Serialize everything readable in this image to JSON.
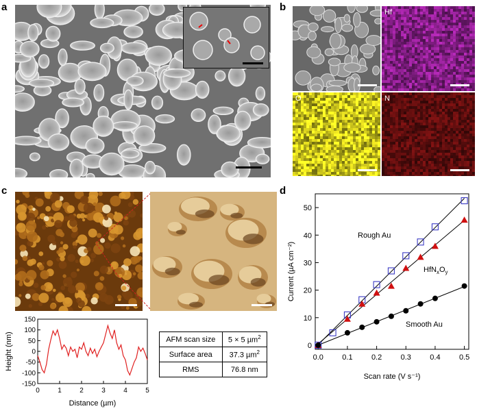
{
  "panels": {
    "a": "a",
    "b": "b",
    "c": "c",
    "d": "d"
  },
  "eds_labels": [
    "Hf",
    "O",
    "N"
  ],
  "colors": {
    "hf_map": "#8a1f8c",
    "o_map": "#c9c21c",
    "n_map": "#5a0d0d",
    "afm": "#a8641a",
    "profile_line": "#e02020",
    "rough_marker": "#3b3bc4",
    "hfnxoy_marker": "#d01010"
  },
  "afm_table": {
    "rows": [
      {
        "label": "AFM scan size",
        "value": "5 × 5 µm",
        "sup": "2"
      },
      {
        "label": "Surface area",
        "value": "37.3 µm",
        "sup": "2"
      },
      {
        "label": "RMS",
        "value": "76.8 nm",
        "sup": ""
      }
    ]
  },
  "chart_data": [
    {
      "type": "line",
      "xlabel": "Distance (µm)",
      "ylabel": "Height (nm)",
      "xlim": [
        0,
        5
      ],
      "ylim": [
        -150,
        150
      ],
      "xticks": [
        "0",
        "1",
        "2",
        "3",
        "4",
        "5"
      ],
      "yticks": [
        "150",
        "100",
        "50",
        "0",
        "-50",
        "-100",
        "-150"
      ],
      "series": [
        {
          "x": [
            0,
            0.1,
            0.2,
            0.3,
            0.4,
            0.5,
            0.6,
            0.7,
            0.8,
            0.9,
            1.0,
            1.1,
            1.2,
            1.3,
            1.4,
            1.5,
            1.6,
            1.7,
            1.8,
            1.9,
            2.0,
            2.1,
            2.2,
            2.3,
            2.4,
            2.5,
            2.6,
            2.7,
            2.8,
            2.9,
            3.0,
            3.1,
            3.2,
            3.3,
            3.4,
            3.5,
            3.6,
            3.7,
            3.8,
            3.9,
            4.0,
            4.1,
            4.2,
            4.3,
            4.4,
            4.5,
            4.6,
            4.7,
            4.8,
            4.9,
            5.0
          ],
          "y": [
            -20,
            -50,
            -85,
            -100,
            -60,
            10,
            55,
            95,
            75,
            100,
            60,
            10,
            30,
            15,
            -20,
            20,
            0,
            10,
            -30,
            20,
            10,
            40,
            0,
            -20,
            15,
            -10,
            10,
            -25,
            0,
            20,
            40,
            80,
            120,
            85,
            60,
            100,
            40,
            10,
            30,
            -20,
            -40,
            -90,
            -110,
            -80,
            -50,
            -30,
            20,
            0,
            15,
            -10,
            -40
          ]
        }
      ]
    },
    {
      "type": "scatter",
      "xlabel": "Scan rate (V s⁻¹)",
      "ylabel": "Current (µA cm⁻²)",
      "xlim": [
        0,
        0.5
      ],
      "ylim": [
        0,
        55
      ],
      "xticks": [
        "0.0",
        "0.1",
        "0.2",
        "0.3",
        "0.4",
        "0.5"
      ],
      "yticks": [
        "0",
        "10",
        "20",
        "30",
        "40",
        "50"
      ],
      "annotations": [
        "Rough Au",
        "Smooth Au"
      ],
      "series": [
        {
          "name": "Rough Au",
          "marker": "open-square",
          "x": [
            0,
            0.05,
            0.1,
            0.15,
            0.2,
            0.25,
            0.3,
            0.35,
            0.4,
            0.5
          ],
          "y": [
            0,
            4.5,
            11,
            16.5,
            22,
            27,
            32.5,
            37.5,
            43,
            52.5
          ]
        },
        {
          "name": "HfNxOy",
          "marker": "filled-triangle",
          "x": [
            0,
            0.1,
            0.15,
            0.2,
            0.25,
            0.3,
            0.35,
            0.4,
            0.5
          ],
          "y": [
            0,
            9.5,
            15,
            19,
            21.5,
            28,
            32,
            36,
            45.5
          ]
        },
        {
          "name": "Smooth Au",
          "marker": "filled-circle",
          "x": [
            0,
            0.1,
            0.15,
            0.2,
            0.25,
            0.3,
            0.35,
            0.4,
            0.5
          ],
          "y": [
            0,
            4.5,
            6.5,
            8.5,
            10.5,
            12.5,
            15,
            17,
            21.5
          ]
        }
      ]
    }
  ]
}
